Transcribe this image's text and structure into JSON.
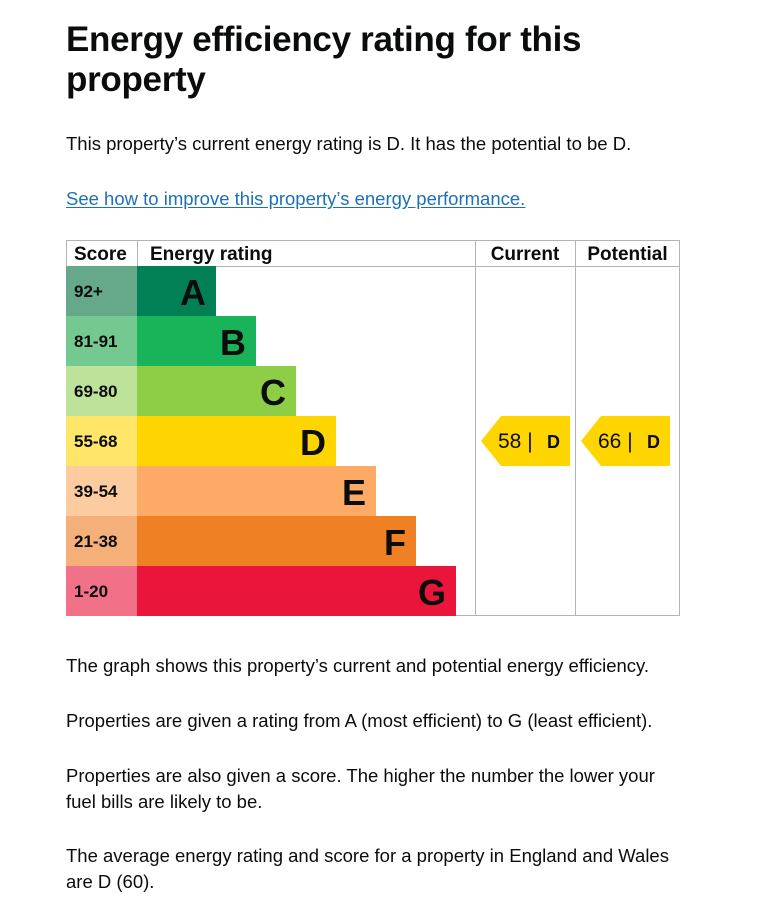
{
  "page": {
    "title": "Energy efficiency rating for this property",
    "intro": "This property’s current energy rating is D. It has the potential to be D.",
    "improve_link": "See how to improve this property’s energy performance.",
    "paragraphs": [
      "The graph shows this property’s current and potential energy efficiency.",
      "Properties are given a rating from A (most efficient) to G (least efficient).",
      "Properties are also given a score. The higher the number the lower your fuel bills are likely to be.",
      "The average energy rating and score for a property in England and Wales are D (60)."
    ]
  },
  "chart_data": {
    "type": "table",
    "columns": [
      "Score",
      "Energy rating",
      "Current",
      "Potential"
    ],
    "bands": [
      {
        "score": "92+",
        "letter": "A",
        "color": "#008054",
        "score_bg": "#66a98a"
      },
      {
        "score": "81-91",
        "letter": "B",
        "color": "#19b459",
        "score_bg": "#73c98f"
      },
      {
        "score": "69-80",
        "letter": "C",
        "color": "#8dce46",
        "score_bg": "#bde29a"
      },
      {
        "score": "55-68",
        "letter": "D",
        "color": "#ffd500",
        "score_bg": "#ffe568"
      },
      {
        "score": "39-54",
        "letter": "E",
        "color": "#fcaa65",
        "score_bg": "#fdcba0"
      },
      {
        "score": "21-38",
        "letter": "F",
        "color": "#ef8023",
        "score_bg": "#f5b07a"
      },
      {
        "score": "1-20",
        "letter": "G",
        "color": "#e9153b",
        "score_bg": "#f17189"
      }
    ],
    "current": {
      "score": 58,
      "band": "D",
      "text": "58 |",
      "letter": "D"
    },
    "potential": {
      "score": 66,
      "band": "D",
      "text": "66 |",
      "letter": "D"
    },
    "grid_color": "#b1b4b6"
  }
}
